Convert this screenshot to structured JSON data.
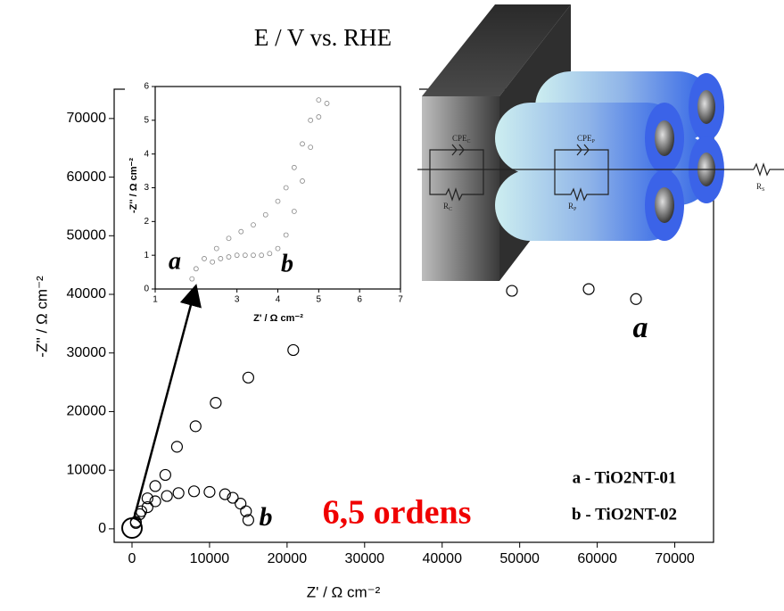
{
  "caption": "E / V vs. RHE",
  "schematic": {
    "labels": [
      {
        "main": "CPE",
        "sub": "C"
      },
      {
        "main": "R",
        "sub": "C"
      },
      {
        "main": "CPE",
        "sub": "P"
      },
      {
        "main": "R",
        "sub": "P"
      },
      {
        "main": "R",
        "sub": "S"
      }
    ]
  },
  "chart_data": [
    {
      "type": "scatter",
      "x_label": "Z' / Ω cm⁻²",
      "y_label": "-Z'' / Ω cm⁻²",
      "xlim": [
        -2300,
        75000
      ],
      "ylim": [
        -2300,
        75000
      ],
      "xticks": [
        0,
        10000,
        20000,
        30000,
        40000,
        50000,
        60000,
        70000
      ],
      "yticks": [
        0,
        10000,
        20000,
        30000,
        40000,
        50000,
        60000,
        70000
      ],
      "legend": "lower right",
      "annotations": [
        "a",
        "b",
        "6,5 ordens"
      ],
      "series": [
        {
          "name": "a - TiO2NT-01",
          "color": "#000000",
          "mode": "markers",
          "x": [
            500,
            1200,
            2000,
            3000,
            4300,
            5800,
            8200,
            10800,
            15000,
            20800,
            27800,
            36200,
            49000,
            58900,
            65000
          ],
          "values": [
            1200,
            3000,
            5200,
            7300,
            9200,
            14000,
            17500,
            21500,
            25800,
            30500,
            35200,
            38800,
            40600,
            40900,
            39200
          ]
        },
        {
          "name": "b - TiO2NT-02",
          "color": "#000000",
          "mode": "markers",
          "x": [
            500,
            1000,
            2000,
            3000,
            4500,
            6000,
            8000,
            10000,
            12000,
            13000,
            14000,
            14700,
            15000
          ],
          "values": [
            1000,
            2500,
            3700,
            4700,
            5600,
            6100,
            6400,
            6300,
            5900,
            5300,
            4300,
            3000,
            1500
          ]
        },
        {
          "color": "#000000",
          "mode": "lines",
          "x": [
            0,
            500,
            1500,
            3000,
            5000,
            8000,
            12000,
            17000,
            22000,
            28000,
            36000,
            47000,
            57000,
            67000
          ],
          "values": [
            0,
            2500,
            6000,
            9500,
            13000,
            17500,
            22500,
            27500,
            31500,
            35200,
            38300,
            39900,
            39700,
            37700
          ]
        },
        {
          "color": "#000000",
          "mode": "lines",
          "x": [
            0,
            500,
            1500,
            3000,
            5000,
            7500,
            10000,
            12000,
            13500,
            14500,
            15000
          ],
          "values": [
            0,
            1800,
            3500,
            4800,
            5800,
            6300,
            6200,
            5600,
            4600,
            3200,
            1800
          ]
        }
      ]
    },
    {
      "type": "scatter",
      "x_label": "Z' / Ω cm⁻²",
      "y_label": "-Z'' / Ω cm⁻²",
      "xlim": [
        1,
        7
      ],
      "ylim": [
        0,
        6
      ],
      "xticks": [
        1,
        2,
        3,
        4,
        5,
        6,
        7
      ],
      "yticks": [
        0,
        1,
        2,
        3,
        4,
        5,
        6
      ],
      "annotations": [
        "a",
        "b"
      ],
      "series": [
        {
          "color": "#888888",
          "mode": "markers",
          "x": [
            1.9,
            2.0,
            2.2,
            2.5,
            2.8,
            3.1,
            3.4,
            3.7,
            4.0,
            4.2,
            4.4,
            4.6,
            4.8,
            5.0
          ],
          "values": [
            0.3,
            0.6,
            0.9,
            1.2,
            1.5,
            1.7,
            1.9,
            2.2,
            2.6,
            3.0,
            3.6,
            4.3,
            5.0,
            5.6
          ]
        },
        {
          "color": "#888888",
          "mode": "markers",
          "x": [
            2.4,
            2.6,
            2.8,
            3.0,
            3.2,
            3.4,
            3.6,
            3.8,
            4.0,
            4.2,
            4.4,
            4.6,
            4.8,
            5.0,
            5.2
          ],
          "values": [
            0.8,
            0.9,
            0.95,
            1.0,
            1.0,
            1.0,
            1.0,
            1.05,
            1.2,
            1.6,
            2.3,
            3.2,
            4.2,
            5.1,
            5.5
          ]
        },
        {
          "color": "#000000",
          "mode": "lines",
          "x": [
            1.8,
            2.0,
            2.3,
            2.7,
            3.1,
            3.5,
            3.9,
            4.2,
            4.5,
            4.8,
            5.1,
            5.35
          ],
          "values": [
            0.2,
            0.5,
            0.9,
            1.3,
            1.6,
            1.9,
            2.3,
            2.8,
            3.6,
            4.5,
            5.4,
            6.0
          ]
        },
        {
          "color": "#000000",
          "mode": "lines",
          "x": [
            2.3,
            2.6,
            3.0,
            3.4,
            3.8,
            4.0,
            4.2,
            4.4,
            4.6,
            4.8,
            5.0,
            5.2
          ],
          "values": [
            0.85,
            0.95,
            1.0,
            1.0,
            1.05,
            1.2,
            1.6,
            2.4,
            3.3,
            4.3,
            5.2,
            6.0
          ]
        }
      ]
    }
  ]
}
